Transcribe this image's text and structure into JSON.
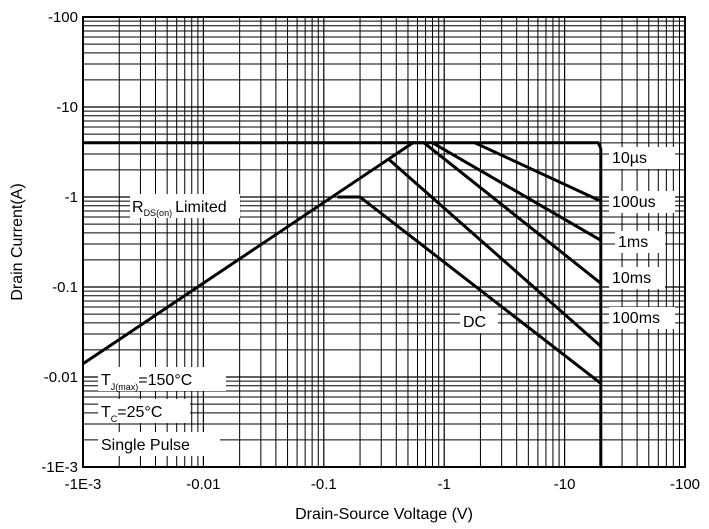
{
  "chart_data": {
    "type": "line",
    "title": "",
    "xlabel": "Drain-Source Voltage (V)",
    "ylabel": "Drain Current(A)",
    "xscale": "log",
    "yscale": "log",
    "xlim": [
      0.001,
      100
    ],
    "ylim": [
      0.001,
      100
    ],
    "grid": true,
    "x_tick_labels": [
      "-1E-3",
      "-0.01",
      "-0.1",
      "-1",
      "-10",
      "-100"
    ],
    "y_tick_labels": [
      "-100",
      "-10",
      "-1",
      "-0.1",
      "-0.01",
      "-1E-3"
    ],
    "series": [
      {
        "name": "10µs",
        "points": [
          [
            0.001,
            4
          ],
          [
            19,
            4
          ],
          [
            20,
            3.5
          ]
        ]
      },
      {
        "name": "100us",
        "points": [
          [
            1.8,
            4
          ],
          [
            20,
            0.9
          ]
        ]
      },
      {
        "name": "1ms",
        "points": [
          [
            0.8,
            4
          ],
          [
            20,
            0.33
          ]
        ]
      },
      {
        "name": "10ms",
        "points": [
          [
            0.5,
            4
          ],
          [
            0.68,
            4
          ],
          [
            20,
            0.11
          ]
        ]
      },
      {
        "name": "100ms",
        "points": [
          [
            0.35,
            2.6
          ],
          [
            20,
            0.022
          ]
        ]
      },
      {
        "name": "DC",
        "points": [
          [
            0.13,
            1
          ],
          [
            0.2,
            1
          ],
          [
            20,
            0.0085
          ]
        ]
      },
      {
        "name": "rds-limit",
        "points": [
          [
            0.001,
            0.014
          ],
          [
            0.55,
            4
          ]
        ]
      },
      {
        "name": "vds-limit",
        "points": [
          [
            20,
            3.5
          ],
          [
            20,
            0.001
          ]
        ]
      }
    ],
    "annotations": {
      "rds_main": "R",
      "rds_sub": "DS(on)",
      "rds_tail": "Limited",
      "tj_main": "T",
      "tj_sub": "J(max)",
      "tj_tail": "=150°C",
      "tc_main": "T",
      "tc_sub": "C",
      "tc_tail": "=25°C",
      "pulse": "Single Pulse"
    }
  }
}
